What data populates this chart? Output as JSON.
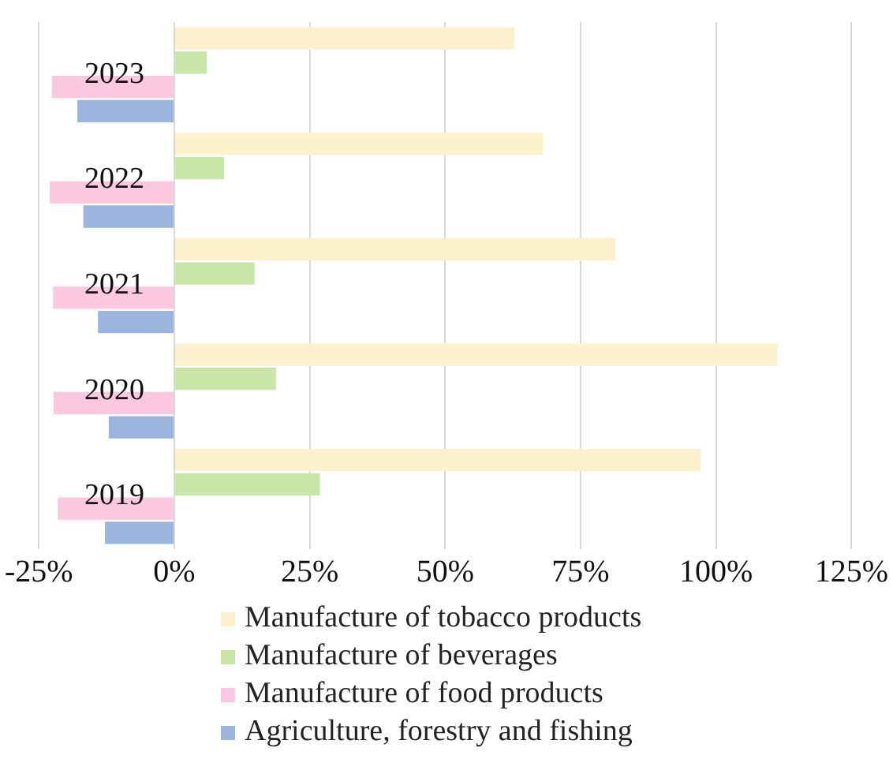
{
  "chart_data": {
    "type": "bar",
    "orientation": "horizontal",
    "categories": [
      "2023",
      "2022",
      "2021",
      "2020",
      "2019"
    ],
    "series": [
      {
        "name": "Manufacture of tobacco products",
        "color": "#fdf0cc",
        "values": [
          62.8,
          68.1,
          81.4,
          111.3,
          97.2
        ]
      },
      {
        "name": "Manufacture of beverages",
        "color": "#c8e6a6",
        "values": [
          6,
          9.2,
          14.8,
          18.8,
          26.9
        ]
      },
      {
        "name": "Manufacture of food products",
        "color": "#fcc8e0",
        "values": [
          -22.6,
          -23,
          -22.4,
          -22.3,
          -21.5
        ]
      },
      {
        "name": "Agriculture, forestry and fishing",
        "color": "#9bb5de",
        "values": [
          -17.9,
          -16.8,
          -14.1,
          -12.1,
          -12.8
        ]
      }
    ],
    "xlim": [
      -25,
      125
    ],
    "xticks": [
      {
        "value": -25,
        "label": "-25%"
      },
      {
        "value": 0,
        "label": "0%"
      },
      {
        "value": 25,
        "label": "25%"
      },
      {
        "value": 50,
        "label": "50%"
      },
      {
        "value": 75,
        "label": "75%"
      },
      {
        "value": 100,
        "label": "100%"
      },
      {
        "value": 125,
        "label": "125%"
      }
    ],
    "grid": "x",
    "legend": "bottom"
  }
}
